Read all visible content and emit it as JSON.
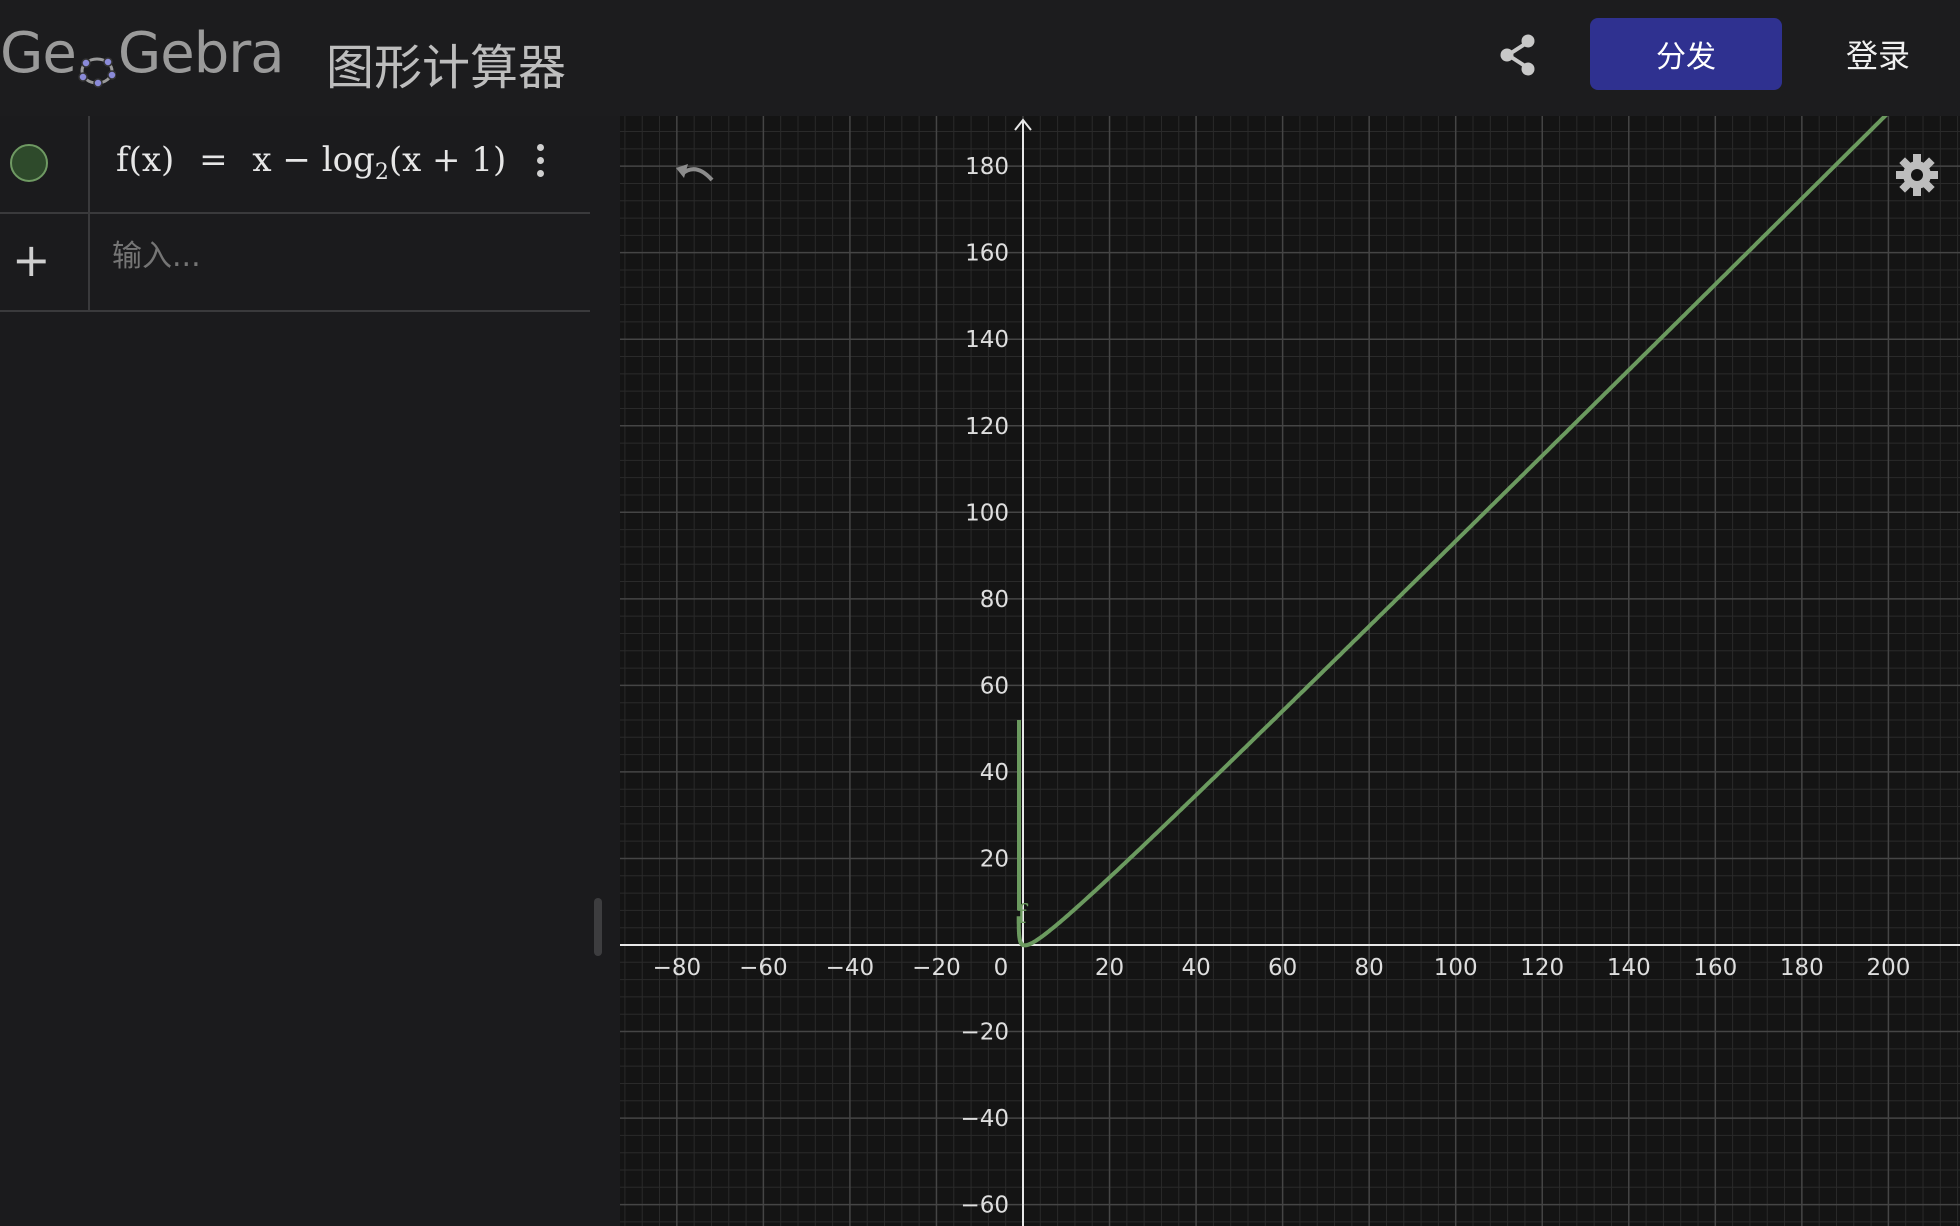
{
  "header": {
    "logo_text": "GeoGebra",
    "app_title": "图形计算器",
    "distribute_label": "分发",
    "login_label": "登录",
    "accent_color": "#2f3190"
  },
  "algebra": {
    "items": [
      {
        "formula_lhs": "f(x)",
        "formula_eq": "=",
        "formula_rhs_pre": "x − log",
        "formula_sub": "2",
        "formula_rhs_post": "(x + 1)",
        "color": "#6b9a5f"
      }
    ],
    "input_placeholder": "输入..."
  },
  "icons": [
    "share-icon",
    "kebab-menu-icon",
    "plus-icon",
    "undo-icon",
    "settings-gear-icon"
  ],
  "chart_data": {
    "type": "line",
    "function": "f(x) = x - log2(x+1)",
    "series": [
      {
        "name": "f",
        "color": "#6b9a5f"
      }
    ],
    "x_ticks": [
      "−80",
      "−60",
      "−40",
      "−20",
      "0",
      "20",
      "40",
      "60",
      "80",
      "100",
      "120",
      "140",
      "160",
      "180",
      "200"
    ],
    "y_ticks": [
      "180",
      "160",
      "140",
      "120",
      "100",
      "80",
      "60",
      "40",
      "20",
      "−20",
      "−40",
      "−60"
    ],
    "xlim": [
      -94,
      216
    ],
    "ylim": [
      -65,
      191
    ],
    "grid": true
  }
}
